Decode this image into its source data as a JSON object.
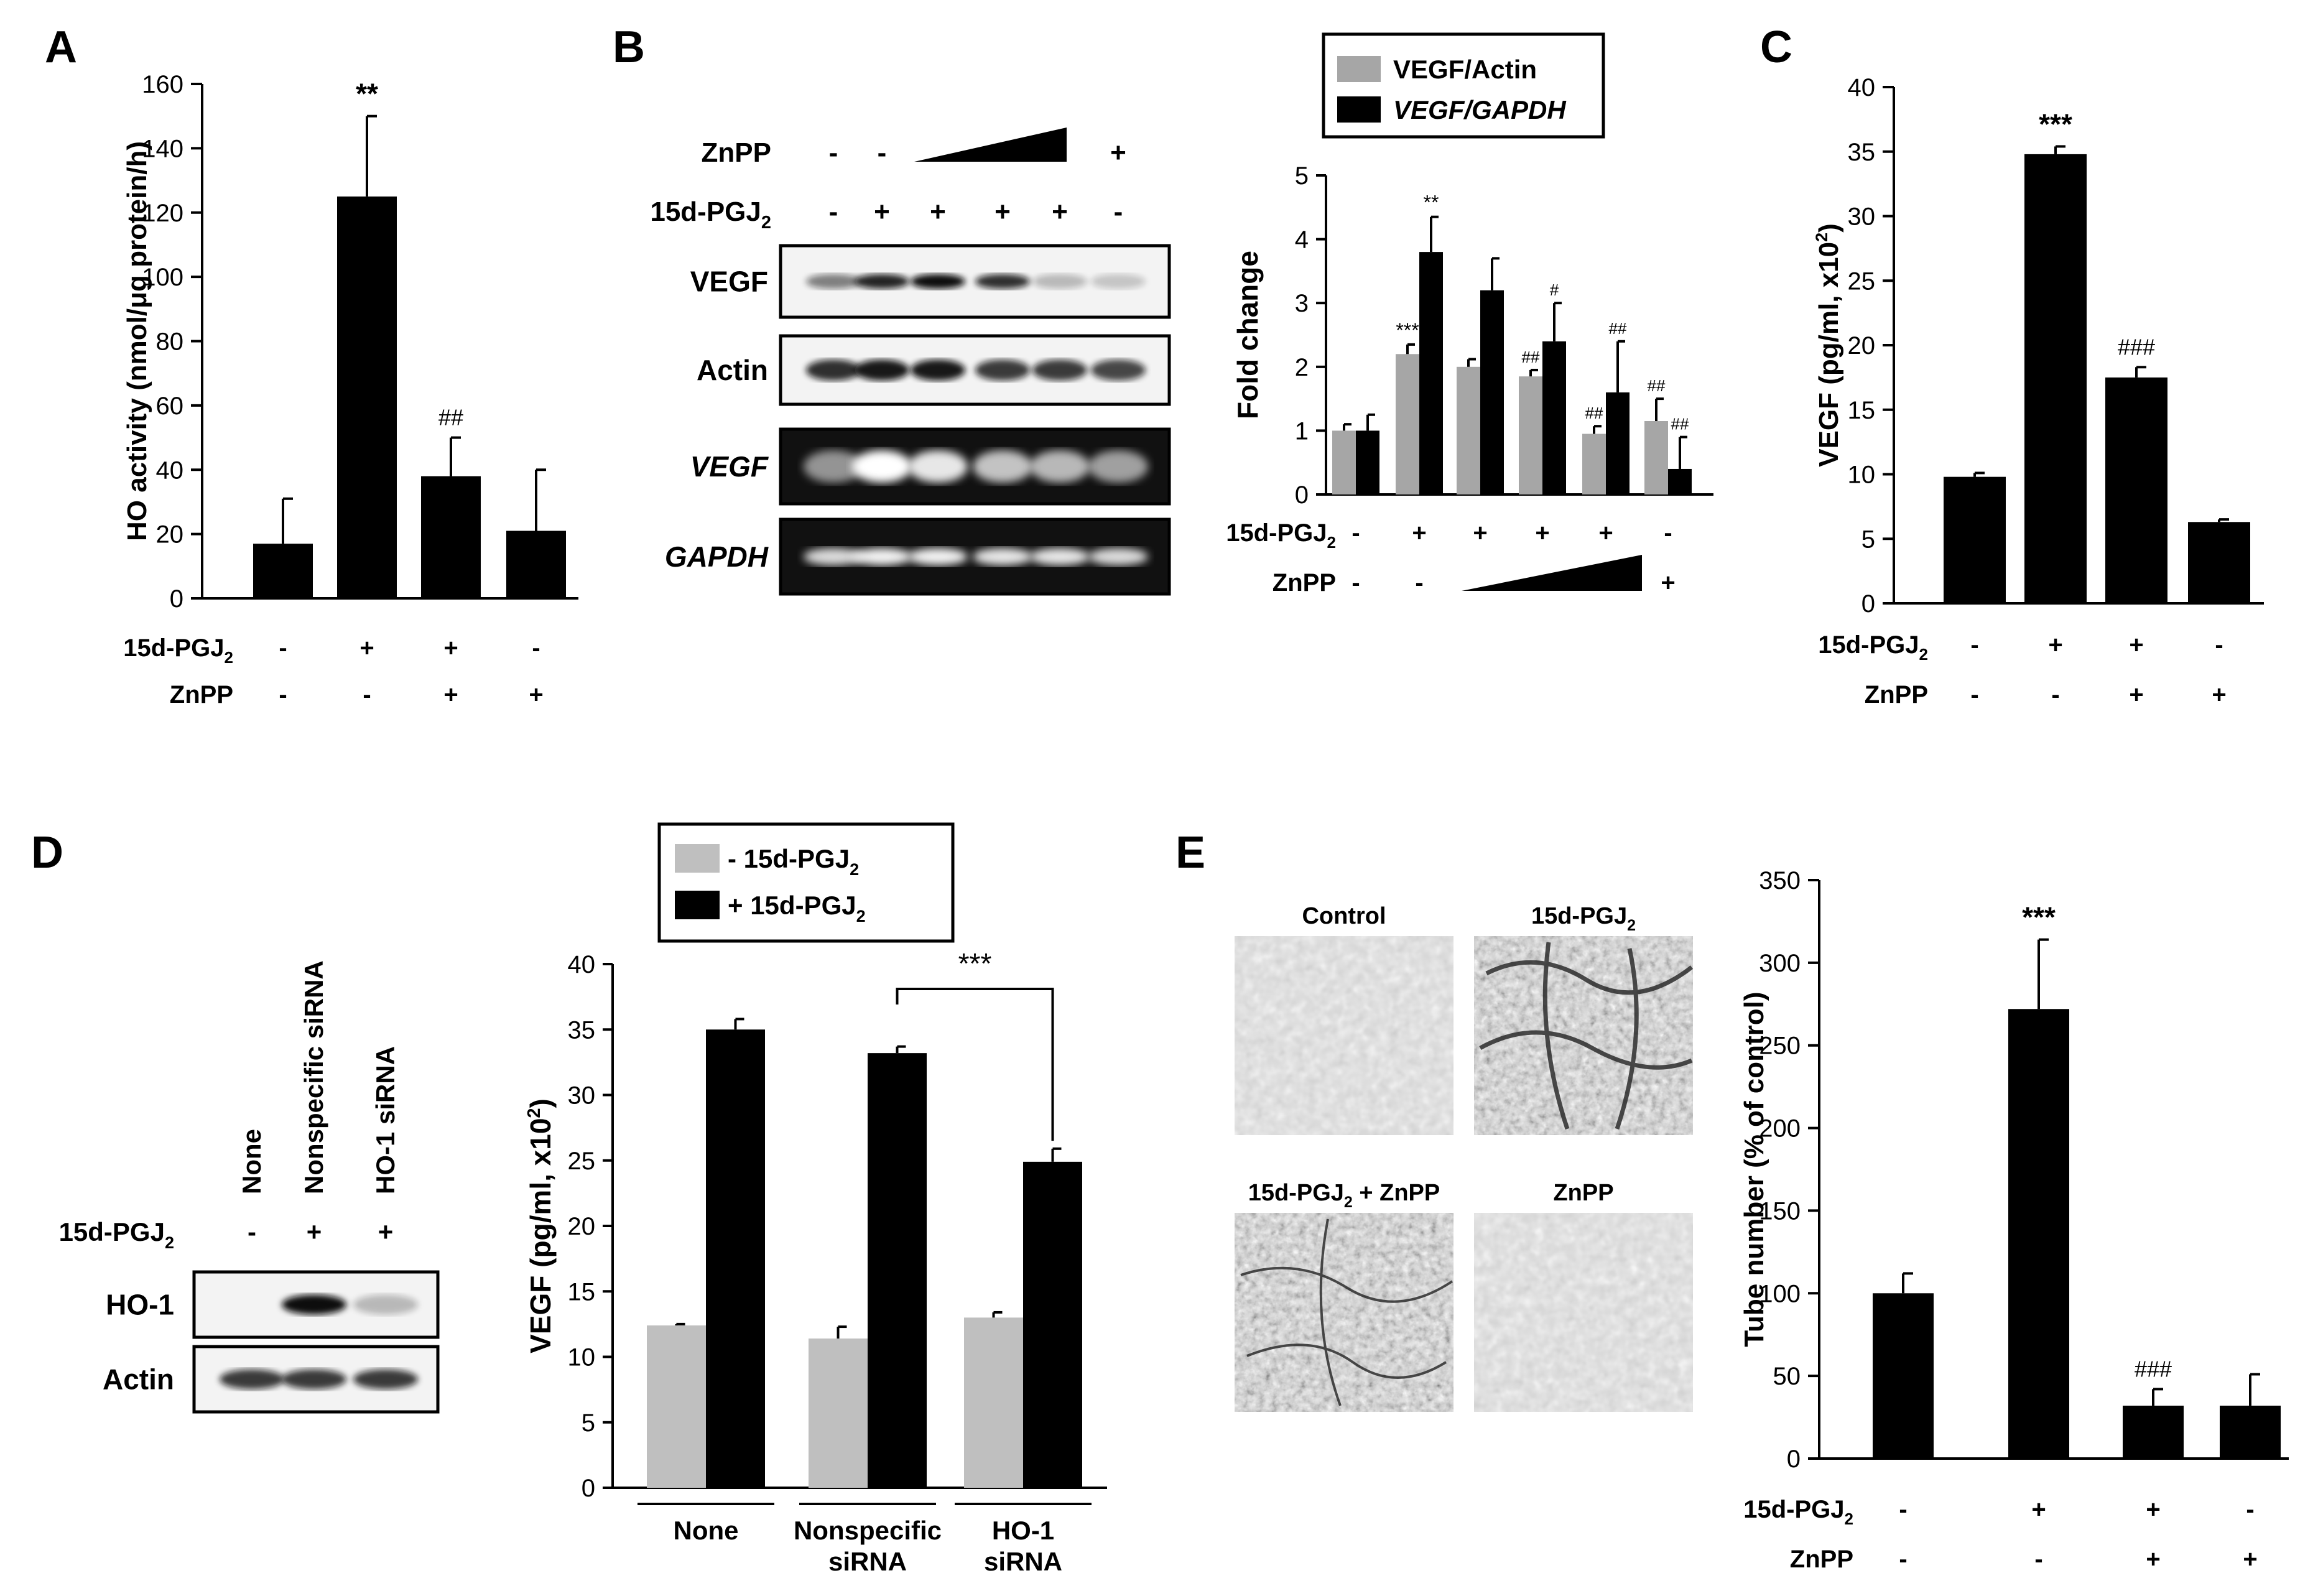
{
  "panels": {
    "A": {
      "letter": "A",
      "chart_data": {
        "type": "bar",
        "ylabel": "HO activity (nmol/μg protein/h)",
        "ylim": [
          0,
          160
        ],
        "yticks": [
          0,
          20,
          40,
          60,
          80,
          100,
          120,
          140,
          160
        ],
        "values": [
          17,
          125,
          38,
          21
        ],
        "errors": [
          14,
          25,
          12,
          19
        ],
        "annotations": [
          "",
          "**",
          "##",
          ""
        ],
        "condition_rows": [
          {
            "label": "15d-PGJ",
            "sub": "2",
            "signs": [
              "-",
              "+",
              "+",
              "-"
            ]
          },
          {
            "label": "ZnPP",
            "sub": "",
            "signs": [
              "-",
              "-",
              "+",
              "+"
            ]
          }
        ]
      }
    },
    "B": {
      "letter": "B",
      "blot": {
        "rows": [
          {
            "label": "ZnPP",
            "sub": "",
            "signs": [
              "-",
              "-",
              "",
              "",
              "",
              "+"
            ]
          },
          {
            "label": "15d-PGJ",
            "sub": "2",
            "signs": [
              "-",
              "+",
              "+",
              "+",
              "+",
              "-"
            ]
          }
        ],
        "bands": [
          {
            "label": "VEGF",
            "italic": false
          },
          {
            "label": "Actin",
            "italic": false
          },
          {
            "label": "VEGF",
            "italic": true
          },
          {
            "label": "GAPDH",
            "italic": true
          }
        ]
      },
      "chart_data": {
        "type": "bar",
        "ylabel": "Fold change",
        "ylim": [
          0,
          5
        ],
        "yticks": [
          0,
          1,
          2,
          3,
          4,
          5
        ],
        "legend": [
          "VEGF/Actin",
          "VEGF/GAPDH"
        ],
        "series": [
          {
            "name": "VEGF/Actin",
            "color": "#a6a6a6",
            "values": [
              1.0,
              2.2,
              2.0,
              1.85,
              0.95,
              1.15
            ],
            "errors": [
              0.1,
              0.15,
              0.12,
              0.1,
              0.12,
              0.35
            ],
            "annotations": [
              "",
              "***",
              "",
              "##",
              "##",
              "##"
            ]
          },
          {
            "name": "VEGF/GAPDH",
            "color": "#000000",
            "values": [
              1.0,
              3.8,
              3.2,
              2.4,
              1.6,
              0.4
            ],
            "errors": [
              0.25,
              0.55,
              0.5,
              0.6,
              0.8,
              0.5
            ],
            "annotations": [
              "",
              "**",
              "",
              "#",
              "##",
              "##"
            ]
          }
        ],
        "condition_rows": [
          {
            "label": "15d-PGJ",
            "sub": "2",
            "signs": [
              "-",
              "+",
              "+",
              "+",
              "+",
              "-"
            ]
          },
          {
            "label": "ZnPP",
            "sub": "",
            "signs": [
              "-",
              "-",
              "",
              "",
              "",
              "+"
            ]
          }
        ]
      }
    },
    "C": {
      "letter": "C",
      "chart_data": {
        "type": "bar",
        "ylabel_main": "VEGF (pg/ml, x10",
        "ylabel_sup": "2",
        "ylabel_end": ")",
        "ylim": [
          0,
          40
        ],
        "yticks": [
          0,
          5,
          10,
          15,
          20,
          25,
          30,
          35,
          40
        ],
        "values": [
          9.8,
          34.8,
          17.5,
          6.3
        ],
        "errors": [
          0.3,
          0.6,
          0.8,
          0.2
        ],
        "annotations": [
          "",
          "***",
          "###",
          ""
        ],
        "condition_rows": [
          {
            "label": "15d-PGJ",
            "sub": "2",
            "signs": [
              "-",
              "+",
              "+",
              "-"
            ]
          },
          {
            "label": "ZnPP",
            "sub": "",
            "signs": [
              "-",
              "-",
              "+",
              "+"
            ]
          }
        ]
      }
    },
    "D": {
      "letter": "D",
      "blot": {
        "columns": [
          "None",
          "Nonspecific siRNA",
          "HO-1 siRNA"
        ],
        "row": {
          "label": "15d-PGJ",
          "sub": "2",
          "signs": [
            "-",
            "+",
            "+"
          ]
        },
        "bands": [
          "HO-1",
          "Actin"
        ]
      },
      "chart_data": {
        "type": "bar",
        "ylabel_main": "VEGF (pg/ml, x10",
        "ylabel_sup": "2",
        "ylabel_end": ")",
        "ylim": [
          0,
          40
        ],
        "yticks": [
          0,
          5,
          10,
          15,
          20,
          25,
          30,
          35,
          40
        ],
        "categories": [
          [
            "None"
          ],
          [
            "Nonspecific",
            "siRNA"
          ],
          [
            "HO-1",
            "siRNA"
          ]
        ],
        "legend": [
          {
            "text": "- 15d-PGJ",
            "sub": "2"
          },
          {
            "text": "+ 15d-PGJ",
            "sub": "2"
          }
        ],
        "series": [
          {
            "name": "- 15d-PGJ2",
            "color": "#bfbfbf",
            "values": [
              12.4,
              11.4,
              13.0
            ],
            "errors": [
              0.1,
              0.9,
              0.4
            ]
          },
          {
            "name": "+ 15d-PGJ2",
            "color": "#000000",
            "values": [
              35.0,
              33.2,
              24.9
            ],
            "errors": [
              0.8,
              0.5,
              1.0
            ]
          }
        ],
        "significance": "***"
      }
    },
    "E": {
      "letter": "E",
      "images": [
        {
          "label": "Control",
          "sub": "",
          "after": ""
        },
        {
          "label": "15d-PGJ",
          "sub": "2",
          "after": ""
        },
        {
          "label": "15d-PGJ",
          "sub": "2",
          "after": " + ZnPP"
        },
        {
          "label": "ZnPP",
          "sub": "",
          "after": ""
        }
      ],
      "chart_data": {
        "type": "bar",
        "ylabel": "Tube number (% of control)",
        "ylim": [
          0,
          350
        ],
        "yticks": [
          0,
          50,
          100,
          150,
          200,
          250,
          300,
          350
        ],
        "values": [
          100,
          272,
          32,
          32
        ],
        "errors": [
          12,
          42,
          10,
          19
        ],
        "annotations": [
          "",
          "***",
          "###",
          ""
        ],
        "condition_rows": [
          {
            "label": "15d-PGJ",
            "sub": "2",
            "signs": [
              "-",
              "+",
              "+",
              "-"
            ]
          },
          {
            "label": "ZnPP",
            "sub": "",
            "signs": [
              "-",
              "-",
              "+",
              "+"
            ]
          }
        ]
      }
    }
  }
}
